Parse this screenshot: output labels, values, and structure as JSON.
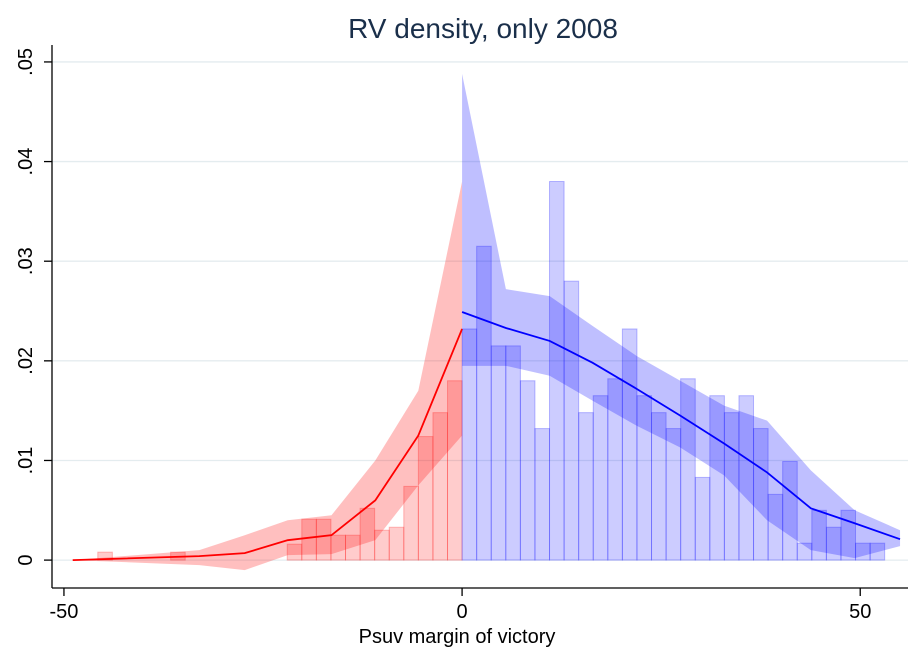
{
  "chart_data": {
    "type": "rd-density",
    "title": "RV density, only 2008",
    "x_label": "Psuv margin of victory",
    "xlim": [
      -51.5,
      56
    ],
    "ylim": [
      -0.0028,
      0.0517
    ],
    "xticks": [
      -50,
      0,
      50
    ],
    "yticks": [
      0,
      {
        "value": 0.01,
        "label": ".01"
      },
      {
        "value": 0.02,
        "label": ".02"
      },
      {
        "value": 0.03,
        "label": ".03"
      },
      {
        "value": 0.04,
        "label": ".04"
      },
      {
        "value": 0.05,
        "label": ".05"
      }
    ],
    "grid": true,
    "histograms": [
      {
        "color": "#ff0000",
        "bins": [
          -45.75,
          -43.92,
          -42.09,
          -40.26,
          -38.43,
          -36.6,
          -34.77,
          -32.94,
          -31.11,
          -29.28,
          -27.45,
          -25.62,
          -23.79,
          -21.96,
          -20.13,
          -18.3,
          -16.47,
          -14.64,
          -12.81,
          -10.98,
          -9.15,
          -7.32,
          -5.49,
          -3.66,
          -1.83,
          0
        ],
        "values": [
          0.0008,
          0,
          0,
          0,
          0,
          0.0008,
          0,
          0,
          0,
          0,
          0,
          0,
          0,
          0.0016,
          0.0041,
          0.0041,
          0.0025,
          0.0025,
          0.0052,
          0.003,
          0.0033,
          0.0074,
          0.0124,
          0.0148,
          0.018
        ]
      },
      {
        "color": "#0000ff",
        "bins": [
          0,
          1.83,
          3.66,
          5.49,
          7.32,
          9.15,
          10.98,
          12.81,
          14.64,
          16.47,
          18.3,
          20.13,
          21.96,
          23.79,
          25.62,
          27.45,
          29.28,
          31.11,
          32.94,
          34.77,
          36.6,
          38.43,
          40.26,
          42.09,
          43.92,
          45.75,
          47.58,
          49.41,
          51.24,
          53.07
        ],
        "values": [
          0.0232,
          0.0315,
          0.0215,
          0.0215,
          0.018,
          0.0132,
          0.038,
          0.028,
          0.0148,
          0.0165,
          0.0182,
          0.0232,
          0.0165,
          0.0148,
          0.0132,
          0.0182,
          0.0083,
          0.0165,
          0.0148,
          0.0165,
          0.0132,
          0.0066,
          0.0099,
          0.0017,
          0.005,
          0.0033,
          0.005,
          0.0017,
          0.0017
        ]
      }
    ],
    "lines": [
      {
        "color": "#ff0000",
        "x": [
          -48.9,
          -33,
          -27.3,
          -21.9,
          -16.4,
          -10.9,
          -5.5,
          0
        ],
        "values": [
          0,
          0.0004,
          0.0007,
          0.002,
          0.0025,
          0.006,
          0.0125,
          0.0232
        ],
        "lower": [
          0,
          -0.0005,
          -0.001,
          0.0005,
          0.0006,
          0.002,
          0.0075,
          0.0125
        ],
        "upper": [
          0,
          0.001,
          0.0025,
          0.004,
          0.0045,
          0.01,
          0.017,
          0.038
        ]
      },
      {
        "color": "#0000ff",
        "x": [
          0,
          5.5,
          11,
          16.4,
          21.9,
          27.4,
          32.9,
          38.3,
          43.8,
          49.3,
          55
        ],
        "values": [
          0.0249,
          0.0233,
          0.022,
          0.0198,
          0.0172,
          0.0145,
          0.0117,
          0.0088,
          0.0052,
          0.0037,
          0.0021
        ],
        "lower": [
          0.0195,
          0.0195,
          0.0185,
          0.016,
          0.0135,
          0.0113,
          0.0085,
          0.004,
          0.001,
          0.0002,
          0.0014
        ],
        "upper": [
          0.0488,
          0.0272,
          0.0265,
          0.0235,
          0.0205,
          0.018,
          0.0155,
          0.014,
          0.009,
          0.005,
          0.003
        ]
      }
    ]
  }
}
